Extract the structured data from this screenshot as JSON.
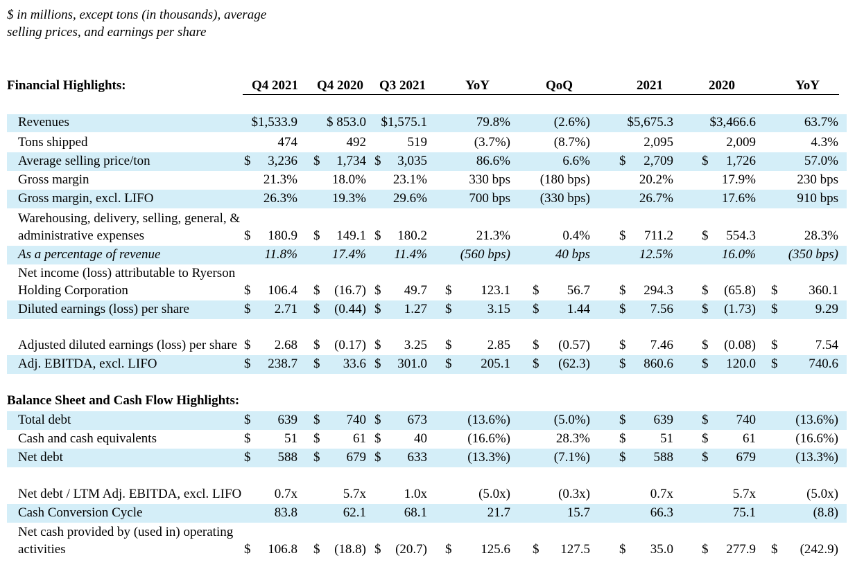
{
  "note": "$ in millions, except tons (in thousands), average selling prices, and earnings per share",
  "header": {
    "title": "Financial Highlights:",
    "columns": [
      "Q4 2021",
      "Q4 2020",
      "Q3 2021",
      "YoY",
      "QoQ",
      "2021",
      "2020",
      "YoY"
    ]
  },
  "balance_title": "Balance Sheet and Cash Flow Highlights:",
  "rows": [
    {
      "label": "Revenues",
      "shade": true,
      "values": [
        "$1,533.9",
        "$  853.0",
        "$1,575.1",
        "79.8%",
        "(2.6%)",
        "$5,675.3",
        "$3,466.6",
        "63.7%"
      ],
      "dollars": [
        "",
        "",
        "",
        "",
        "",
        "",
        "",
        ""
      ]
    },
    {
      "label": "Tons shipped",
      "shade": false,
      "values": [
        "474",
        "492",
        "519",
        "(3.7%)",
        "(8.7%)",
        "2,095",
        "2,009",
        "4.3%"
      ],
      "dollars": [
        "",
        "",
        "",
        "",
        "",
        "",
        "",
        ""
      ]
    },
    {
      "label": "Average selling price/ton",
      "shade": true,
      "values": [
        "3,236",
        "1,734",
        "3,035",
        "86.6%",
        "6.6%",
        "2,709",
        "1,726",
        "57.0%"
      ],
      "dollars": [
        "$",
        "$",
        "$",
        "",
        "",
        "$",
        "$",
        ""
      ]
    },
    {
      "label": "Gross margin",
      "shade": false,
      "values": [
        "21.3%",
        "18.0%",
        "23.1%",
        "330 bps",
        "(180 bps)",
        "20.2%",
        "17.9%",
        "230 bps"
      ],
      "dollars": [
        "",
        "",
        "",
        "",
        "",
        "",
        "",
        ""
      ]
    },
    {
      "label": "Gross margin, excl. LIFO",
      "shade": true,
      "values": [
        "26.3%",
        "19.3%",
        "29.6%",
        "700 bps",
        "(330 bps)",
        "26.7%",
        "17.6%",
        "910 bps"
      ],
      "dollars": [
        "",
        "",
        "",
        "",
        "",
        "",
        "",
        ""
      ]
    },
    {
      "label": "Warehousing, delivery, selling, general, & administrative expenses",
      "shade": false,
      "values": [
        "180.9",
        "149.1",
        "180.2",
        "21.3%",
        "0.4%",
        "711.2",
        "554.3",
        "28.3%"
      ],
      "dollars": [
        "$",
        "$",
        "$",
        "",
        "",
        "$",
        "$",
        ""
      ]
    },
    {
      "label": "As a percentage of revenue",
      "shade": true,
      "italic": true,
      "values": [
        "11.8%",
        "17.4%",
        "11.4%",
        "(560 bps)",
        "40 bps",
        "12.5%",
        "16.0%",
        "(350 bps)"
      ],
      "dollars": [
        "",
        "",
        "",
        "",
        "",
        "",
        "",
        ""
      ]
    },
    {
      "label": "Net income (loss) attributable to Ryerson Holding Corporation",
      "shade": false,
      "values": [
        "106.4",
        "(16.7)",
        "49.7",
        "123.1",
        "56.7",
        "294.3",
        "(65.8)",
        "360.1"
      ],
      "dollars": [
        "$",
        "$",
        "$",
        "$",
        "$",
        "$",
        "$",
        "$"
      ]
    },
    {
      "label": "Diluted earnings (loss) per share",
      "shade": true,
      "values": [
        "2.71",
        "(0.44)",
        "1.27",
        "3.15",
        "1.44",
        "7.56",
        "(1.73)",
        "9.29"
      ],
      "dollars": [
        "$",
        "$",
        "$",
        "$",
        "$",
        "$",
        "$",
        "$"
      ]
    },
    {
      "label": "Adjusted diluted earnings (loss) per share",
      "shade": false,
      "values": [
        "2.68",
        "(0.17)",
        "3.25",
        "2.85",
        "(0.57)",
        "7.46",
        "(0.08)",
        "7.54"
      ],
      "dollars": [
        "$",
        "$",
        "$",
        "$",
        "$",
        "$",
        "$",
        "$"
      ]
    },
    {
      "label": "Adj. EBITDA, excl. LIFO",
      "shade": true,
      "values": [
        "238.7",
        "33.6",
        "301.0",
        "205.1",
        "(62.3)",
        "860.6",
        "120.0",
        "740.6"
      ],
      "dollars": [
        "$",
        "$",
        "$",
        "$",
        "$",
        "$",
        "$",
        "$"
      ]
    },
    {
      "label": "Total debt",
      "shade": true,
      "values": [
        "639",
        "740",
        "673",
        "(13.6%)",
        "(5.0%)",
        "639",
        "740",
        "(13.6%)"
      ],
      "dollars": [
        "$",
        "$",
        "$",
        "",
        "",
        "$",
        "$",
        ""
      ]
    },
    {
      "label": "Cash and cash equivalents",
      "shade": false,
      "values": [
        "51",
        "61",
        "40",
        "(16.6%)",
        "28.3%",
        "51",
        "61",
        "(16.6%)"
      ],
      "dollars": [
        "$",
        "$",
        "$",
        "",
        "",
        "$",
        "$",
        ""
      ]
    },
    {
      "label": "Net debt",
      "shade": true,
      "values": [
        "588",
        "679",
        "633",
        "(13.3%)",
        "(7.1%)",
        "588",
        "679",
        "(13.3%)"
      ],
      "dollars": [
        "$",
        "$",
        "$",
        "",
        "",
        "$",
        "$",
        ""
      ]
    },
    {
      "label": "Net debt / LTM Adj. EBITDA, excl. LIFO",
      "shade": false,
      "values": [
        "0.7x",
        "5.7x",
        "1.0x",
        "(5.0x)",
        "(0.3x)",
        "0.7x",
        "5.7x",
        "(5.0x)"
      ],
      "dollars": [
        "",
        "",
        "",
        "",
        "",
        "",
        "",
        ""
      ]
    },
    {
      "label": "Cash Conversion Cycle",
      "shade": true,
      "values": [
        "83.8",
        "62.1",
        "68.1",
        "21.7",
        "15.7",
        "66.3",
        "75.1",
        "(8.8)"
      ],
      "dollars": [
        "",
        "",
        "",
        "",
        "",
        "",
        "",
        ""
      ]
    },
    {
      "label": "Net cash provided by (used in) operating activities",
      "shade": false,
      "values": [
        "106.8",
        "(18.8)",
        "(20.7)",
        "125.6",
        "127.5",
        "35.0",
        "277.9",
        "(242.9)"
      ],
      "dollars": [
        "$",
        "$",
        "$",
        "$",
        "$",
        "$",
        "$",
        "$"
      ]
    }
  ]
}
